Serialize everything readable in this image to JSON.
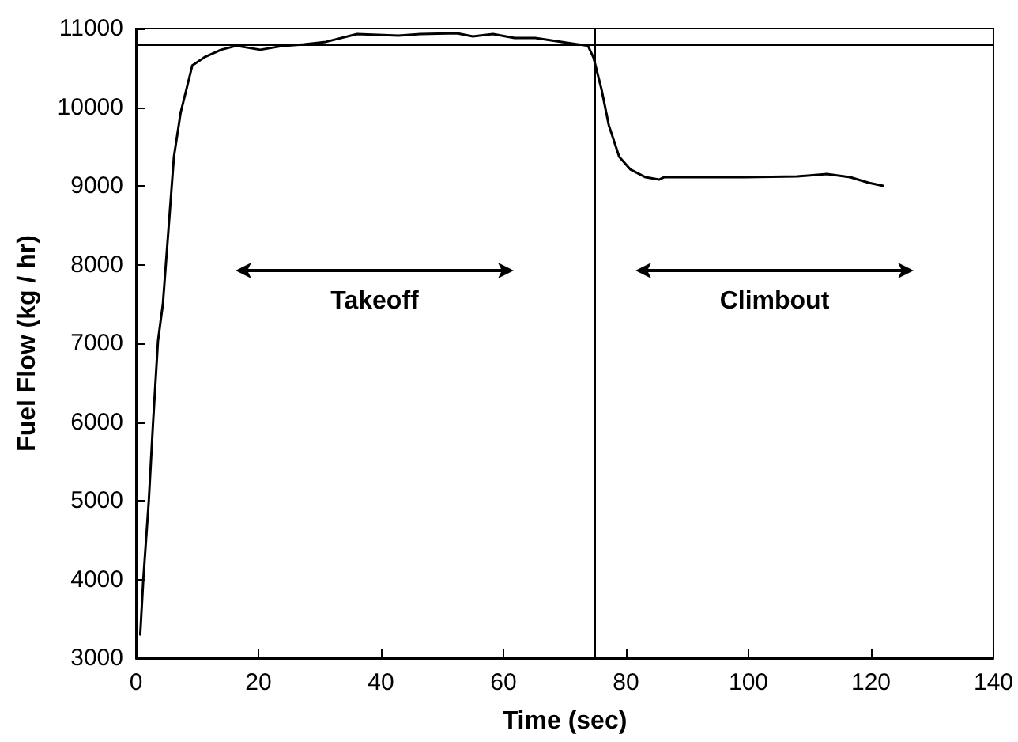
{
  "chart_data": {
    "type": "line",
    "xlabel": "Time (sec)",
    "ylabel": "Fuel Flow (kg / hr)",
    "xlim": [
      0,
      140
    ],
    "xticks": [
      0,
      20,
      40,
      60,
      80,
      100,
      120,
      140
    ],
    "ylim": [
      3000,
      11000
    ],
    "yticks": [
      3000,
      4000,
      5000,
      6000,
      7000,
      8000,
      9000,
      10000,
      11000
    ],
    "grid": false,
    "marker": "none",
    "line_style": "solid",
    "series": [
      {
        "color": "#000000",
        "x": [
          0.7,
          1.2,
          2.1,
          2.8,
          3.6,
          4.4,
          6.2,
          7.3,
          9.2,
          11.3,
          13.9,
          16.4,
          20.3,
          24.1,
          27.5,
          31,
          36.1,
          42.9,
          46.4,
          52.4,
          55,
          58.3,
          61.8,
          65.2,
          69.5,
          73.8,
          74.7,
          76,
          77.2,
          78.9,
          80.7,
          83.2,
          85.4,
          86.2,
          99.5,
          108,
          112.8,
          116.6,
          119.6,
          122
        ],
        "values": [
          3300,
          4000,
          5000,
          6000,
          7030,
          7500,
          9370,
          9930,
          10530,
          10640,
          10730,
          10780,
          10730,
          10780,
          10800,
          10830,
          10930,
          10910,
          10930,
          10940,
          10900,
          10930,
          10880,
          10880,
          10830,
          10780,
          10630,
          10230,
          9770,
          9370,
          9210,
          9110,
          9080,
          9110,
          9110,
          9120,
          9150,
          9110,
          9040,
          9000
        ]
      }
    ],
    "ref_lines": [
      {
        "axis": "y",
        "value": 10800,
        "color": "#000000"
      },
      {
        "axis": "x",
        "value": 75,
        "color": "#000000"
      }
    ],
    "annotations": [
      "Takeoff",
      "Climbout"
    ]
  }
}
